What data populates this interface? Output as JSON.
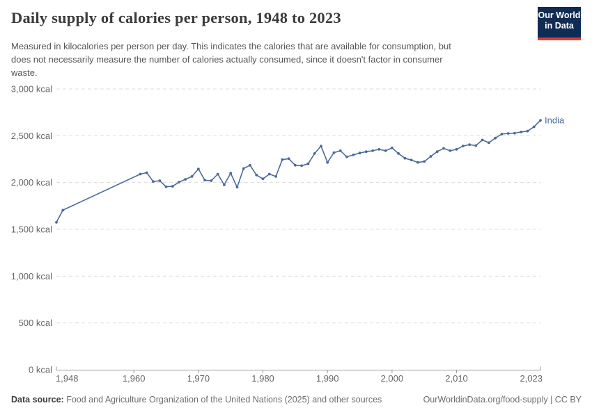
{
  "header": {
    "title": "Daily supply of calories per person, 1948 to 2023",
    "subtitle_lines": [
      "Measured in kilocalories per person per day. This indicates the calories that are available for consumption, but",
      "does not necessarily measure the number of calories actually consumed, since it doesn't factor in consumer",
      "waste."
    ],
    "logo": {
      "line1": "Our World",
      "line2": "in Data"
    }
  },
  "chart_data": {
    "type": "line",
    "title": "Daily supply of calories per person, 1948 to 2023",
    "xlabel": "",
    "ylabel": "",
    "xlim": [
      1948,
      2023
    ],
    "ylim": [
      0,
      3000
    ],
    "x_ticks": [
      1948,
      1960,
      1970,
      1980,
      1990,
      2000,
      2010,
      2023
    ],
    "y_ticks": [
      0,
      500,
      1000,
      1500,
      2000,
      2500,
      3000
    ],
    "y_unit": " kcal",
    "grid": "horizontal-dashed",
    "legend_position": "line-end-label",
    "series": [
      {
        "name": "India",
        "color": "#4c6a9c",
        "points": [
          [
            1948,
            1575
          ],
          [
            1949,
            1705
          ],
          [
            1961,
            2090
          ],
          [
            1962,
            2105
          ],
          [
            1963,
            2010
          ],
          [
            1964,
            2020
          ],
          [
            1965,
            1955
          ],
          [
            1966,
            1960
          ],
          [
            1967,
            2005
          ],
          [
            1968,
            2035
          ],
          [
            1969,
            2065
          ],
          [
            1970,
            2145
          ],
          [
            1971,
            2025
          ],
          [
            1972,
            2020
          ],
          [
            1973,
            2090
          ],
          [
            1974,
            1975
          ],
          [
            1975,
            2100
          ],
          [
            1976,
            1950
          ],
          [
            1977,
            2150
          ],
          [
            1978,
            2185
          ],
          [
            1979,
            2080
          ],
          [
            1980,
            2040
          ],
          [
            1981,
            2090
          ],
          [
            1982,
            2065
          ],
          [
            1983,
            2245
          ],
          [
            1984,
            2255
          ],
          [
            1985,
            2185
          ],
          [
            1986,
            2180
          ],
          [
            1987,
            2200
          ],
          [
            1988,
            2310
          ],
          [
            1989,
            2390
          ],
          [
            1990,
            2215
          ],
          [
            1991,
            2320
          ],
          [
            1992,
            2340
          ],
          [
            1993,
            2275
          ],
          [
            1994,
            2295
          ],
          [
            1995,
            2315
          ],
          [
            1996,
            2330
          ],
          [
            1997,
            2340
          ],
          [
            1998,
            2355
          ],
          [
            1999,
            2340
          ],
          [
            2000,
            2370
          ],
          [
            2001,
            2310
          ],
          [
            2002,
            2260
          ],
          [
            2003,
            2240
          ],
          [
            2004,
            2215
          ],
          [
            2005,
            2225
          ],
          [
            2006,
            2280
          ],
          [
            2007,
            2330
          ],
          [
            2008,
            2365
          ],
          [
            2009,
            2340
          ],
          [
            2010,
            2355
          ],
          [
            2011,
            2390
          ],
          [
            2012,
            2405
          ],
          [
            2013,
            2395
          ],
          [
            2014,
            2455
          ],
          [
            2015,
            2425
          ],
          [
            2016,
            2475
          ],
          [
            2017,
            2518
          ],
          [
            2018,
            2525
          ],
          [
            2019,
            2528
          ],
          [
            2020,
            2540
          ],
          [
            2021,
            2550
          ],
          [
            2022,
            2595
          ],
          [
            2023,
            2665
          ]
        ]
      }
    ]
  },
  "footer": {
    "source_label": "Data source:",
    "source_text": "Food and Agriculture Organization of the United Nations (2025) and other sources",
    "credit": "OurWorldinData.org/food-supply | CC BY"
  },
  "colors": {
    "line": "#4c6a9c",
    "logo_bg": "#112c54",
    "logo_accent": "#dc3d31",
    "grid": "#dcdcdc",
    "axis": "#999999",
    "tick_label": "#666666",
    "title": "#3b3b3b",
    "subtitle": "#555555"
  }
}
